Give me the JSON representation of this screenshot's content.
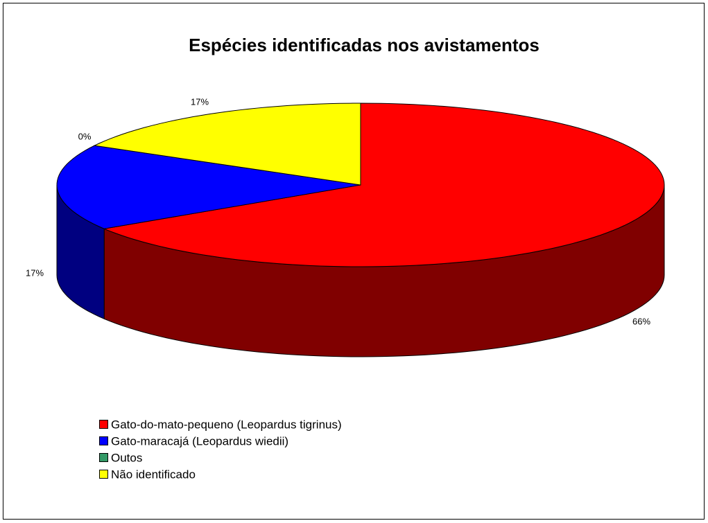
{
  "chart_data": {
    "type": "pie",
    "title": "Espécies identificadas nos avistamentos",
    "categories": [
      "Gato-do-mato-pequeno (Leopardus tigrinus)",
      "Gato-maracajá (Leopardus wiedii)",
      "Outos",
      "Não identificado"
    ],
    "values": [
      66,
      17,
      0,
      17
    ],
    "value_labels": [
      "66%",
      "17%",
      "0%",
      "17%"
    ],
    "colors": [
      "#ff0000",
      "#0000ff",
      "#339966",
      "#ffff00"
    ],
    "side_colors": [
      "#800000",
      "#000080",
      "#1a4d33",
      "#808000"
    ],
    "legend": "bottom-left"
  }
}
